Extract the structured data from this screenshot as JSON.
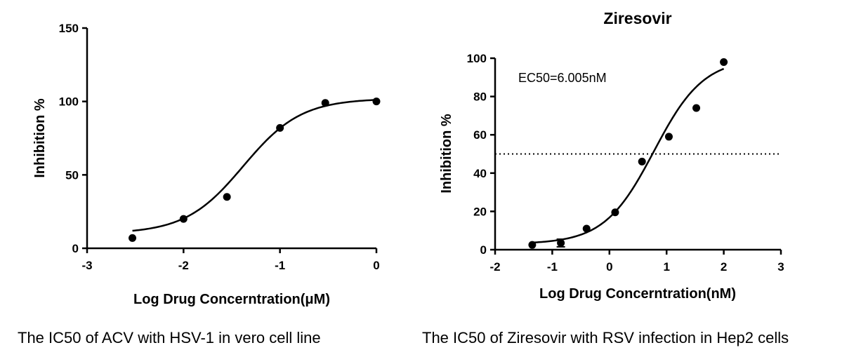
{
  "chart_data": [
    {
      "type": "scatter",
      "title": "",
      "xlabel": "Log Drug Concerntration(μM)",
      "ylabel": "Inhibition %",
      "xlim": [
        -3,
        0
      ],
      "ylim": [
        0,
        150
      ],
      "xticks": [
        "-3",
        "-2",
        "-1",
        "0"
      ],
      "yticks": [
        "0",
        "50",
        "100",
        "150"
      ],
      "grid": false,
      "series": [
        {
          "points": [
            [
              -2.53,
              7
            ],
            [
              -2.0,
              20
            ],
            [
              -1.55,
              35
            ],
            [
              -1.0,
              82
            ],
            [
              -0.53,
              99
            ],
            [
              0.0,
              100
            ]
          ],
          "fit": {
            "kind": "sigmoid",
            "bottom": 10,
            "top": 102,
            "log_ic50": -1.38,
            "hill": 1.45
          }
        }
      ],
      "caption": "The IC50 of ACV with HSV-1 in vero cell line"
    },
    {
      "type": "scatter",
      "title": "Ziresovir",
      "xlabel": "Log Drug Concerntration(nM)",
      "ylabel": "Inhibition %",
      "xlim": [
        -2,
        3
      ],
      "ylim": [
        0,
        100
      ],
      "xticks": [
        "-2",
        "-1",
        "0",
        "1",
        "2",
        "3"
      ],
      "yticks": [
        "0",
        "20",
        "40",
        "60",
        "80",
        "100"
      ],
      "grid": false,
      "annotation": "EC50=6.005nM",
      "reference_line": 50,
      "series": [
        {
          "points": [
            [
              -1.35,
              2.5
            ],
            [
              -0.85,
              3.5
            ],
            [
              -0.4,
              11
            ],
            [
              0.1,
              19.5
            ],
            [
              0.57,
              46
            ],
            [
              1.04,
              59
            ],
            [
              1.52,
              74
            ],
            [
              2.0,
              98
            ]
          ],
          "errorbars": [
            [
              -0.85,
              1.5,
              5.5
            ]
          ],
          "fit": {
            "kind": "sigmoid",
            "bottom": 3,
            "top": 100,
            "log_ic50": 0.78,
            "hill": 1.0
          }
        }
      ],
      "caption": "The IC50 of Ziresovir with RSV infection in Hep2 cells"
    }
  ]
}
